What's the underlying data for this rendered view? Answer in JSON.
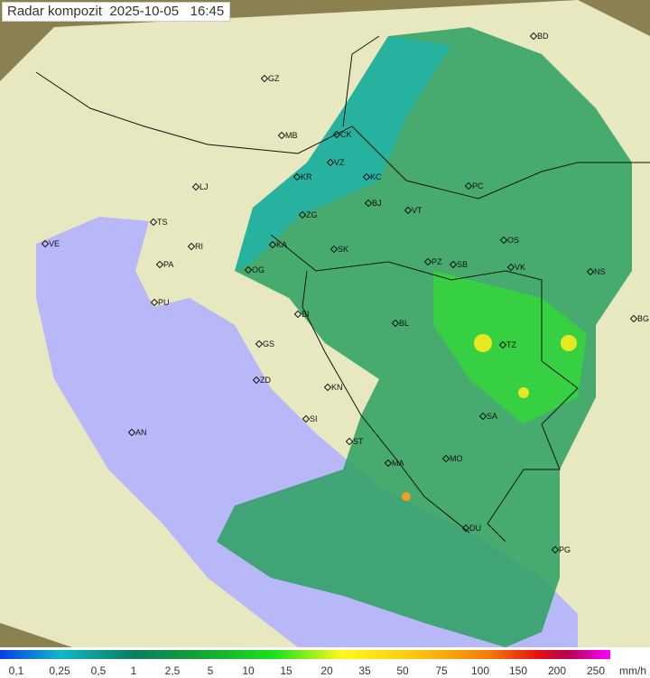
{
  "header": {
    "title": "Radar kompozit",
    "date": "2025-10-05",
    "time": "16:45"
  },
  "map": {
    "cities": [
      "GZ",
      "BD",
      "MB",
      "CK",
      "KR",
      "VZ",
      "KC",
      "PC",
      "LJ",
      "ZG",
      "BJ",
      "VT",
      "TS",
      "VE",
      "RI",
      "KA",
      "SK",
      "OS",
      "PA",
      "OG",
      "PZ",
      "SB",
      "VK",
      "NS",
      "PU",
      "BI",
      "BL",
      "BG",
      "GS",
      "TZ",
      "ZD",
      "KN",
      "SA",
      "AN",
      "SI",
      "ST",
      "MA",
      "MO",
      "DU",
      "PG"
    ],
    "colors": {
      "sea": "#b8b8f8",
      "land": "#e8e8c0",
      "outside": "#8a8050"
    }
  },
  "legend": {
    "values": [
      "0,1",
      "0,25",
      "0,5",
      "1",
      "2,5",
      "5",
      "10",
      "15",
      "20",
      "35",
      "50",
      "75",
      "100",
      "150",
      "200",
      "250"
    ],
    "unit": "mm/h",
    "colors": [
      "#0a3ce8",
      "#0fb8c8",
      "#0b7d5e",
      "#13a038",
      "#19e21c",
      "#fff91a",
      "#fbc70a",
      "#f87c08",
      "#e81010",
      "#b80050",
      "#ff00ff"
    ]
  }
}
